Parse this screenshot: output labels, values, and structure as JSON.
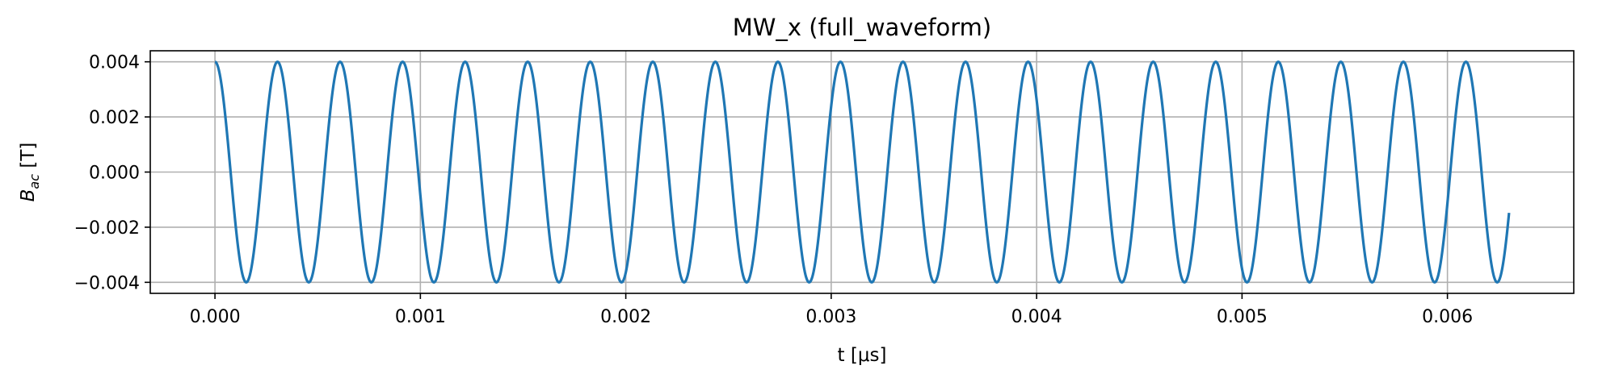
{
  "chart_data": {
    "type": "line",
    "title": "MW_x (full_waveform)",
    "xlabel": "t [μs]",
    "ylabel_main": "B",
    "ylabel_sub": "ac",
    "ylabel_unit": " [T]",
    "xlim": [
      -0.000315,
      0.006615
    ],
    "ylim": [
      -0.0044,
      0.0044
    ],
    "grid": true,
    "line_color": "#1f77b4",
    "grid_color": "#b0b0b0",
    "xticks": [
      {
        "value": 0.0,
        "label": "0.000"
      },
      {
        "value": 0.001,
        "label": "0.001"
      },
      {
        "value": 0.002,
        "label": "0.002"
      },
      {
        "value": 0.003,
        "label": "0.003"
      },
      {
        "value": 0.004,
        "label": "0.004"
      },
      {
        "value": 0.005,
        "label": "0.005"
      },
      {
        "value": 0.006,
        "label": "0.006"
      }
    ],
    "yticks": [
      {
        "value": 0.004,
        "label": "0.004"
      },
      {
        "value": 0.002,
        "label": "0.002"
      },
      {
        "value": 0.0,
        "label": "0.000"
      },
      {
        "value": -0.002,
        "label": "−0.002"
      },
      {
        "value": -0.004,
        "label": "−0.004"
      }
    ],
    "series": [
      {
        "function": "cosine",
        "amplitude": 0.004,
        "period": 0.0003045,
        "t_start": 0.0,
        "t_end": 0.0063,
        "samples": 2400
      }
    ]
  }
}
